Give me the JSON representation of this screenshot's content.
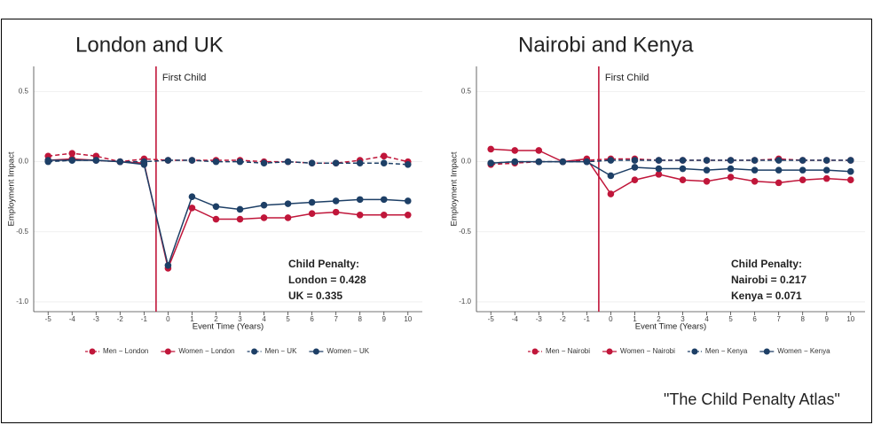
{
  "chart_data": [
    {
      "type": "line",
      "title": "London and UK",
      "x_label": "Event Time (Years)",
      "y_label": "Employment Impact",
      "x": [
        -5,
        -4,
        -3,
        -2,
        -1,
        0,
        1,
        2,
        3,
        4,
        5,
        6,
        7,
        8,
        9,
        10
      ],
      "series": [
        {
          "name": "Men − London",
          "color": "#c0163a",
          "dashed": true,
          "values": [
            0.04,
            0.06,
            0.04,
            0,
            0.02,
            0.01,
            0.01,
            0.01,
            0.01,
            0,
            0,
            -0.01,
            -0.01,
            0.01,
            0.04,
            0
          ]
        },
        {
          "name": "Women − London",
          "color": "#c0163a",
          "dashed": false,
          "values": [
            0.01,
            0.02,
            0.01,
            0,
            -0.01,
            -0.76,
            -0.33,
            -0.41,
            -0.41,
            -0.4,
            -0.4,
            -0.37,
            -0.36,
            -0.38,
            -0.38,
            -0.38
          ]
        },
        {
          "name": "Men − UK",
          "color": "#1d3f66",
          "dashed": true,
          "values": [
            0,
            0.01,
            0.01,
            0,
            0,
            0.01,
            0.01,
            0,
            0,
            -0.01,
            0,
            -0.01,
            -0.01,
            -0.01,
            -0.01,
            -0.02
          ]
        },
        {
          "name": "Women − UK",
          "color": "#1d3f66",
          "dashed": false,
          "values": [
            0.01,
            0.01,
            0.01,
            0,
            -0.02,
            -0.74,
            -0.25,
            -0.32,
            -0.34,
            -0.31,
            -0.3,
            -0.29,
            -0.28,
            -0.27,
            -0.27,
            -0.28
          ]
        }
      ],
      "vline": -0.5,
      "vline_label": "First Child",
      "vline_color": "#c0163a",
      "annotation": [
        "Child Penalty:",
        "London = 0.428",
        "UK = 0.335"
      ],
      "xlim": [
        -5.6,
        10.6
      ],
      "xticks": [
        -5,
        -4,
        -3,
        -2,
        -1,
        0,
        1,
        2,
        3,
        4,
        5,
        6,
        7,
        8,
        9,
        10
      ],
      "ylim": [
        -1.07,
        0.68
      ],
      "yticks": [
        {
          "value": -1,
          "label": "-1.0"
        },
        -0.5,
        {
          "value": 0,
          "label": "0.0"
        },
        0.5
      ],
      "grid": true,
      "legend": "bottom"
    },
    {
      "type": "line",
      "title": "Nairobi and Kenya",
      "x_label": "Event Time (Years)",
      "y_label": "Employment Impact",
      "x": [
        -5,
        -4,
        -3,
        -2,
        -1,
        0,
        1,
        2,
        3,
        4,
        5,
        6,
        7,
        8,
        9,
        10
      ],
      "series": [
        {
          "name": "Men − Nairobi",
          "color": "#c0163a",
          "dashed": true,
          "values": [
            -0.02,
            -0.01,
            0,
            0,
            0.01,
            0.02,
            0.02,
            0.01,
            0.01,
            0.01,
            0.01,
            0.01,
            0.02,
            0.01,
            0.01,
            0.01
          ]
        },
        {
          "name": "Women − Nairobi",
          "color": "#c0163a",
          "dashed": false,
          "values": [
            0.09,
            0.08,
            0.08,
            0,
            0.02,
            -0.23,
            -0.13,
            -0.09,
            -0.13,
            -0.14,
            -0.11,
            -0.14,
            -0.15,
            -0.13,
            -0.12,
            -0.13
          ]
        },
        {
          "name": "Men − Kenya",
          "color": "#1d3f66",
          "dashed": true,
          "values": [
            -0.01,
            0,
            0,
            0,
            0,
            0.01,
            0.01,
            0.01,
            0.01,
            0.01,
            0.01,
            0.01,
            0.01,
            0.01,
            0.01,
            0.01
          ]
        },
        {
          "name": "Women − Kenya",
          "color": "#1d3f66",
          "dashed": false,
          "values": [
            -0.01,
            0,
            0,
            0,
            0,
            -0.1,
            -0.04,
            -0.05,
            -0.05,
            -0.06,
            -0.05,
            -0.06,
            -0.06,
            -0.06,
            -0.06,
            -0.07
          ]
        }
      ],
      "vline": -0.5,
      "vline_label": "First Child",
      "vline_color": "#c0163a",
      "annotation": [
        "Child Penalty:",
        "Nairobi = 0.217",
        "Kenya = 0.071"
      ],
      "xlim": [
        -5.6,
        10.6
      ],
      "xticks": [
        -5,
        -4,
        -3,
        -2,
        -1,
        0,
        1,
        2,
        3,
        4,
        5,
        6,
        7,
        8,
        9,
        10
      ],
      "ylim": [
        -1.07,
        0.68
      ],
      "yticks": [
        {
          "value": -1,
          "label": "-1.0"
        },
        -0.5,
        {
          "value": 0,
          "label": "0.0"
        },
        0.5
      ],
      "grid": true,
      "legend": "bottom"
    }
  ],
  "caption": "\"The Child Penalty Atlas\""
}
